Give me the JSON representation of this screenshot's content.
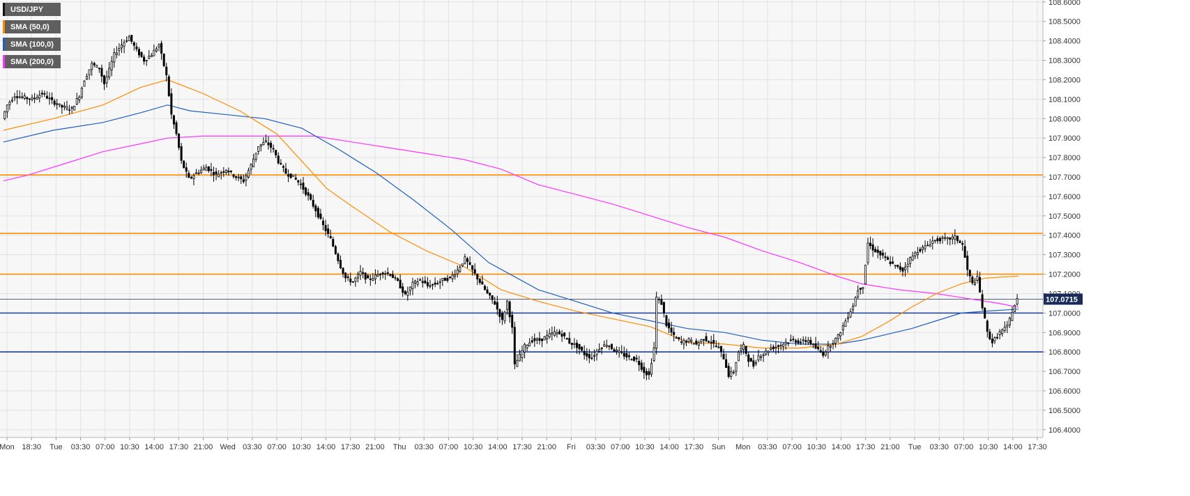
{
  "chart_data": {
    "type": "candlestick",
    "symbol": "USD/JPY",
    "ylim": [
      106.36,
      108.61
    ],
    "y_ticks": [
      "108.6000",
      "108.5000",
      "108.4000",
      "108.3000",
      "108.2000",
      "108.1000",
      "108.0000",
      "107.9000",
      "107.8000",
      "107.7000",
      "107.6000",
      "107.5000",
      "107.4000",
      "107.3000",
      "107.2000",
      "107.1000",
      "107.0000",
      "106.9000",
      "106.8000",
      "106.7000",
      "106.6000",
      "106.5000",
      "106.4000"
    ],
    "x_ticks": [
      "Mon",
      "18:30",
      "Tue",
      "03:30",
      "07:00",
      "10:30",
      "14:00",
      "17:30",
      "21:00",
      "Wed",
      "03:30",
      "07:00",
      "10:30",
      "14:00",
      "17:30",
      "21:00",
      "Thu",
      "03:30",
      "07:00",
      "10:30",
      "14:00",
      "17:30",
      "21:00",
      "Fri",
      "03:30",
      "07:00",
      "10:30",
      "14:00",
      "17:30",
      "Sun",
      "Mon",
      "03:30",
      "07:00",
      "10:30",
      "14:00",
      "17:30",
      "21:00",
      "Tue",
      "03:30",
      "07:00",
      "10:30",
      "14:00",
      "17:30"
    ],
    "current_price": 107.0715,
    "current_price_label": "107.0715",
    "grid": true,
    "legend_position": "top-left",
    "legend": [
      {
        "label": "USD/JPY",
        "color": "#111111"
      },
      {
        "label": "SMA (50,0)",
        "color": "#ff8c00"
      },
      {
        "label": "SMA (100,0)",
        "color": "#1f5fbf"
      },
      {
        "label": "SMA (200,0)",
        "color": "#ff33ff"
      }
    ],
    "horizontal_levels": [
      {
        "value": 107.71,
        "color": "#ff8c00"
      },
      {
        "value": 107.41,
        "color": "#ff8c00"
      },
      {
        "value": 107.2,
        "color": "#ff8c00"
      },
      {
        "value": 107.0,
        "color": "#1a3d9a"
      },
      {
        "value": 106.8,
        "color": "#1a3d9a"
      }
    ],
    "price_path": [
      [
        0,
        108.0
      ],
      [
        2,
        108.07
      ],
      [
        5,
        108.12
      ],
      [
        8,
        108.11
      ],
      [
        12,
        108.1
      ],
      [
        16,
        108.13
      ],
      [
        20,
        108.09
      ],
      [
        24,
        108.06
      ],
      [
        28,
        108.05
      ],
      [
        31,
        108.12
      ],
      [
        33,
        108.2
      ],
      [
        36,
        108.28
      ],
      [
        39,
        108.26
      ],
      [
        41,
        108.18
      ],
      [
        43,
        108.25
      ],
      [
        45,
        108.33
      ],
      [
        48,
        108.38
      ],
      [
        51,
        108.42
      ],
      [
        54,
        108.35
      ],
      [
        57,
        108.3
      ],
      [
        60,
        108.33
      ],
      [
        63,
        108.38
      ],
      [
        66,
        108.22
      ],
      [
        68,
        108.02
      ],
      [
        70,
        107.92
      ],
      [
        72,
        107.78
      ],
      [
        75,
        107.69
      ],
      [
        78,
        107.72
      ],
      [
        82,
        107.75
      ],
      [
        86,
        107.71
      ],
      [
        90,
        107.74
      ],
      [
        94,
        107.7
      ],
      [
        97,
        107.68
      ],
      [
        100,
        107.76
      ],
      [
        103,
        107.86
      ],
      [
        106,
        107.88
      ],
      [
        109,
        107.84
      ],
      [
        111,
        107.78
      ],
      [
        114,
        107.72
      ],
      [
        117,
        107.7
      ],
      [
        120,
        107.66
      ],
      [
        123,
        107.6
      ],
      [
        126,
        107.53
      ],
      [
        129,
        107.45
      ],
      [
        132,
        107.38
      ],
      [
        134,
        107.31
      ],
      [
        136,
        107.24
      ],
      [
        138,
        107.18
      ],
      [
        141,
        107.16
      ],
      [
        144,
        107.21
      ],
      [
        147,
        107.17
      ],
      [
        150,
        107.19
      ],
      [
        153,
        107.21
      ],
      [
        156,
        107.2
      ],
      [
        159,
        107.16
      ],
      [
        162,
        107.09
      ],
      [
        165,
        107.15
      ],
      [
        168,
        107.17
      ],
      [
        171,
        107.14
      ],
      [
        174,
        107.15
      ],
      [
        177,
        107.17
      ],
      [
        180,
        107.18
      ],
      [
        183,
        107.22
      ],
      [
        186,
        107.28
      ],
      [
        189,
        107.22
      ],
      [
        192,
        107.16
      ],
      [
        195,
        107.1
      ],
      [
        198,
        107.05
      ],
      [
        201,
        106.96
      ],
      [
        203,
        107.06
      ],
      [
        205,
        106.92
      ],
      [
        206,
        106.73
      ],
      [
        208,
        106.78
      ],
      [
        210,
        106.83
      ],
      [
        213,
        106.86
      ],
      [
        216,
        106.86
      ],
      [
        219,
        106.88
      ],
      [
        222,
        106.9
      ],
      [
        225,
        106.89
      ],
      [
        228,
        106.85
      ],
      [
        231,
        106.83
      ],
      [
        234,
        106.79
      ],
      [
        237,
        106.77
      ],
      [
        240,
        106.82
      ],
      [
        243,
        106.84
      ],
      [
        246,
        106.81
      ],
      [
        249,
        106.79
      ],
      [
        252,
        106.77
      ],
      [
        255,
        106.76
      ],
      [
        258,
        106.7
      ],
      [
        260,
        106.68
      ],
      [
        262,
        106.82
      ],
      [
        263,
        107.08
      ],
      [
        265,
        107.05
      ],
      [
        267,
        106.94
      ],
      [
        270,
        106.88
      ],
      [
        273,
        106.85
      ],
      [
        276,
        106.86
      ],
      [
        279,
        106.84
      ],
      [
        282,
        106.87
      ],
      [
        285,
        106.85
      ],
      [
        288,
        106.82
      ],
      [
        290,
        106.77
      ],
      [
        292,
        106.68
      ],
      [
        294,
        106.7
      ],
      [
        296,
        106.8
      ],
      [
        298,
        106.83
      ],
      [
        300,
        106.76
      ],
      [
        302,
        106.73
      ],
      [
        304,
        106.78
      ],
      [
        306,
        106.79
      ],
      [
        309,
        106.82
      ],
      [
        312,
        106.83
      ],
      [
        315,
        106.85
      ],
      [
        318,
        106.86
      ],
      [
        321,
        106.85
      ],
      [
        324,
        106.86
      ],
      [
        327,
        106.82
      ],
      [
        330,
        106.79
      ],
      [
        333,
        106.84
      ],
      [
        336,
        106.88
      ],
      [
        339,
        106.96
      ],
      [
        342,
        107.04
      ],
      [
        344,
        107.12
      ],
      [
        346,
        107.14
      ],
      [
        348,
        107.36
      ],
      [
        350,
        107.33
      ],
      [
        353,
        107.3
      ],
      [
        356,
        107.27
      ],
      [
        359,
        107.24
      ],
      [
        362,
        107.22
      ],
      [
        365,
        107.28
      ],
      [
        368,
        107.32
      ],
      [
        371,
        107.34
      ],
      [
        374,
        107.37
      ],
      [
        377,
        107.38
      ],
      [
        380,
        107.38
      ],
      [
        383,
        107.39
      ],
      [
        386,
        107.35
      ],
      [
        388,
        107.22
      ],
      [
        390,
        107.15
      ],
      [
        392,
        107.18
      ],
      [
        394,
        107.03
      ],
      [
        396,
        106.9
      ],
      [
        398,
        106.85
      ],
      [
        401,
        106.9
      ],
      [
        404,
        106.93
      ],
      [
        406,
        107.01
      ],
      [
        408,
        107.07
      ]
    ],
    "sma_50": [
      [
        0,
        107.94
      ],
      [
        20,
        108.0
      ],
      [
        40,
        108.07
      ],
      [
        55,
        108.16
      ],
      [
        66,
        108.2
      ],
      [
        80,
        108.13
      ],
      [
        95,
        108.04
      ],
      [
        110,
        107.92
      ],
      [
        120,
        107.78
      ],
      [
        130,
        107.64
      ],
      [
        140,
        107.55
      ],
      [
        155,
        107.42
      ],
      [
        170,
        107.32
      ],
      [
        185,
        107.24
      ],
      [
        200,
        107.12
      ],
      [
        215,
        107.06
      ],
      [
        230,
        107.01
      ],
      [
        245,
        106.97
      ],
      [
        260,
        106.93
      ],
      [
        275,
        106.85
      ],
      [
        290,
        106.84
      ],
      [
        305,
        106.82
      ],
      [
        320,
        106.82
      ],
      [
        335,
        106.84
      ],
      [
        345,
        106.88
      ],
      [
        355,
        106.95
      ],
      [
        365,
        107.03
      ],
      [
        375,
        107.1
      ],
      [
        385,
        107.15
      ],
      [
        395,
        107.18
      ],
      [
        408,
        107.19
      ]
    ],
    "sma_100": [
      [
        0,
        107.88
      ],
      [
        20,
        107.94
      ],
      [
        40,
        107.98
      ],
      [
        55,
        108.03
      ],
      [
        66,
        108.07
      ],
      [
        75,
        108.04
      ],
      [
        90,
        108.02
      ],
      [
        105,
        108.0
      ],
      [
        120,
        107.95
      ],
      [
        135,
        107.84
      ],
      [
        150,
        107.72
      ],
      [
        165,
        107.58
      ],
      [
        180,
        107.43
      ],
      [
        195,
        107.26
      ],
      [
        205,
        107.19
      ],
      [
        215,
        107.12
      ],
      [
        230,
        107.06
      ],
      [
        245,
        107.0
      ],
      [
        260,
        106.96
      ],
      [
        275,
        106.92
      ],
      [
        290,
        106.9
      ],
      [
        305,
        106.86
      ],
      [
        320,
        106.84
      ],
      [
        335,
        106.84
      ],
      [
        345,
        106.86
      ],
      [
        355,
        106.89
      ],
      [
        365,
        106.92
      ],
      [
        375,
        106.96
      ],
      [
        385,
        107.0
      ],
      [
        395,
        107.01
      ],
      [
        408,
        107.02
      ]
    ],
    "sma_200": [
      [
        0,
        107.68
      ],
      [
        10,
        107.71
      ],
      [
        25,
        107.77
      ],
      [
        40,
        107.83
      ],
      [
        55,
        107.87
      ],
      [
        66,
        107.9
      ],
      [
        80,
        107.91
      ],
      [
        95,
        107.91
      ],
      [
        110,
        107.91
      ],
      [
        125,
        107.91
      ],
      [
        140,
        107.88
      ],
      [
        155,
        107.85
      ],
      [
        170,
        107.82
      ],
      [
        185,
        107.79
      ],
      [
        200,
        107.74
      ],
      [
        215,
        107.66
      ],
      [
        230,
        107.61
      ],
      [
        245,
        107.56
      ],
      [
        260,
        107.5
      ],
      [
        275,
        107.44
      ],
      [
        290,
        107.39
      ],
      [
        305,
        107.32
      ],
      [
        320,
        107.26
      ],
      [
        335,
        107.19
      ],
      [
        345,
        107.15
      ],
      [
        360,
        107.12
      ],
      [
        375,
        107.1
      ],
      [
        390,
        107.07
      ],
      [
        400,
        107.05
      ],
      [
        408,
        107.03
      ]
    ]
  }
}
